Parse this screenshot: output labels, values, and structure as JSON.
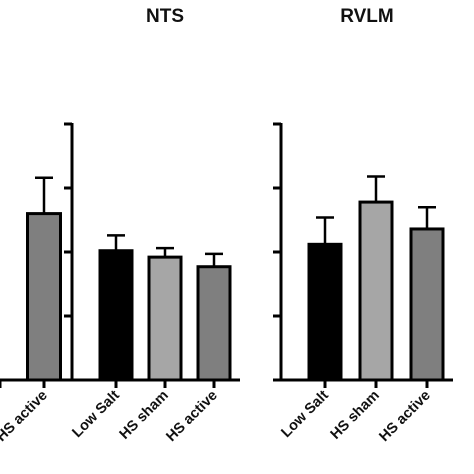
{
  "chart_data": [
    {
      "type": "bar",
      "title": "",
      "categories": [
        "",
        "",
        "HS active"
      ],
      "values": [
        null,
        null,
        2.6
      ],
      "errors": [
        null,
        null,
        0.56
      ],
      "colors": [
        "#000000",
        "#a6a6a6",
        "#7f7f7f"
      ],
      "ylim": [
        0,
        4
      ],
      "yticks": [
        0,
        1,
        2,
        3,
        4
      ],
      "ytick_labels_visible": false,
      "clipped_left": true
    },
    {
      "type": "bar",
      "title": "NTS",
      "categories": [
        "Low Salt",
        "HS sham",
        "HS active"
      ],
      "values": [
        2.02,
        1.92,
        1.77
      ],
      "errors": [
        0.24,
        0.14,
        0.2
      ],
      "colors": [
        "#000000",
        "#a6a6a6",
        "#7f7f7f"
      ],
      "ylim": [
        0,
        4
      ],
      "yticks": [
        0,
        1,
        2,
        3,
        4
      ],
      "ytick_labels_visible": false
    },
    {
      "type": "bar",
      "title": "RVLM",
      "categories": [
        "Low Salt",
        "HS sham",
        "HS active"
      ],
      "values": [
        2.12,
        2.78,
        2.36
      ],
      "errors": [
        0.42,
        0.4,
        0.34
      ],
      "colors": [
        "#000000",
        "#a6a6a6",
        "#7f7f7f"
      ],
      "ylim": [
        0,
        4
      ],
      "yticks": [
        0,
        1,
        2,
        3,
        4
      ],
      "ytick_labels_visible": false
    }
  ]
}
